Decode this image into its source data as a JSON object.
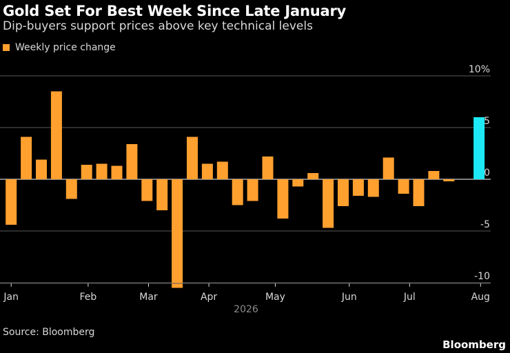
{
  "title": "Gold Set For Best Week Since Late January",
  "subtitle": "Dip-buyers support prices above key technical levels",
  "legend": {
    "label": "Weekly price change",
    "color": "#ffa02f"
  },
  "source": "Source: Bloomberg",
  "logo": "Bloomberg",
  "chart_data": {
    "type": "bar",
    "title": "Gold Set For Best Week Since Late January",
    "subtitle": "Dip-buyers support prices above key technical levels",
    "ylim": [
      -10.5,
      10
    ],
    "y_ticks": [
      {
        "value": 10,
        "label": "10%"
      },
      {
        "value": 5,
        "label": "5"
      },
      {
        "value": 0,
        "label": "0"
      },
      {
        "value": -5,
        "label": "-5"
      },
      {
        "value": -10,
        "label": "-10"
      }
    ],
    "x_tick_labels": [
      "Jan",
      "Feb",
      "Mar",
      "Apr",
      "May",
      "Jun",
      "Jul",
      "Aug"
    ],
    "x_year_label": "2026",
    "grid": true,
    "legend_position": "top-left",
    "series": [
      {
        "name": "Weekly price change",
        "color": "#ffa02f",
        "highlight_color": "#1de9f6",
        "highlight_index": 31,
        "values": [
          -4.4,
          4.1,
          1.9,
          8.5,
          -1.9,
          1.4,
          1.5,
          1.3,
          3.4,
          -2.1,
          -3.0,
          -10.5,
          4.1,
          1.5,
          1.7,
          -2.5,
          -2.1,
          2.2,
          -3.8,
          -0.7,
          0.6,
          -4.7,
          -2.6,
          -1.6,
          -1.7,
          2.1,
          -1.4,
          -2.6,
          0.8,
          -0.2,
          null,
          6.0
        ]
      }
    ]
  }
}
